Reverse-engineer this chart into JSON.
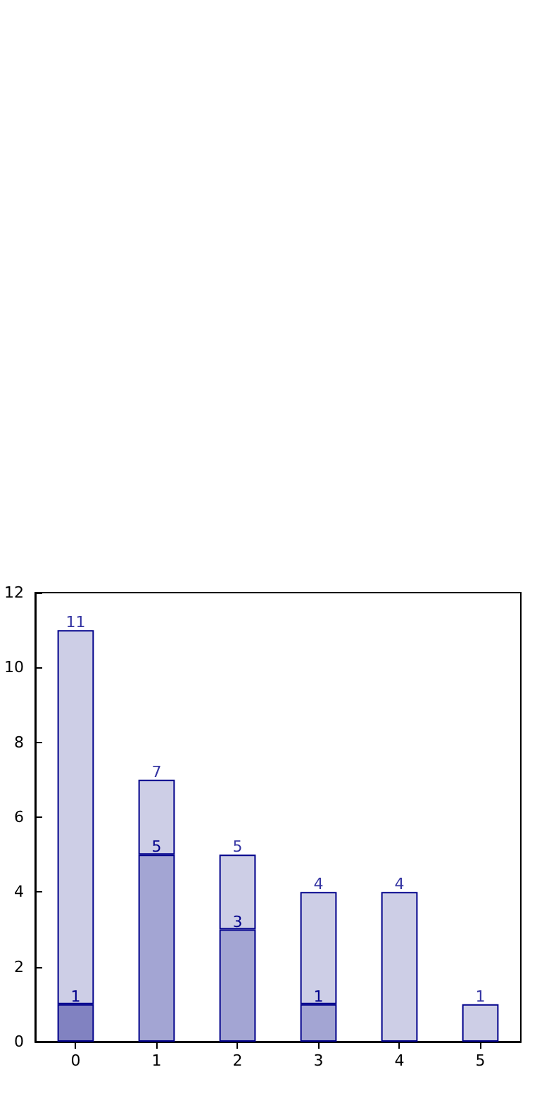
{
  "chart_data": {
    "type": "bar",
    "categories": [
      "0",
      "1",
      "2",
      "3",
      "4",
      "5"
    ],
    "stacked": true,
    "series": [
      {
        "colors": [
          "#8182c1",
          "#a3a5d3",
          "#a3a5d3",
          "#a3a5d3",
          null,
          null
        ],
        "values": [
          1,
          5,
          3,
          1,
          null,
          null
        ],
        "value_labels": [
          "1",
          "5",
          "3",
          "1",
          null,
          null
        ]
      },
      {
        "color": "#cdcee6",
        "values": [
          10,
          2,
          2,
          3,
          4,
          1
        ]
      }
    ],
    "totals": [
      "11",
      "7",
      "5",
      "4",
      "4",
      "1"
    ],
    "ylim": [
      0,
      12
    ],
    "yticks": [
      0,
      2,
      4,
      6,
      8,
      10,
      12
    ],
    "grid": false
  }
}
